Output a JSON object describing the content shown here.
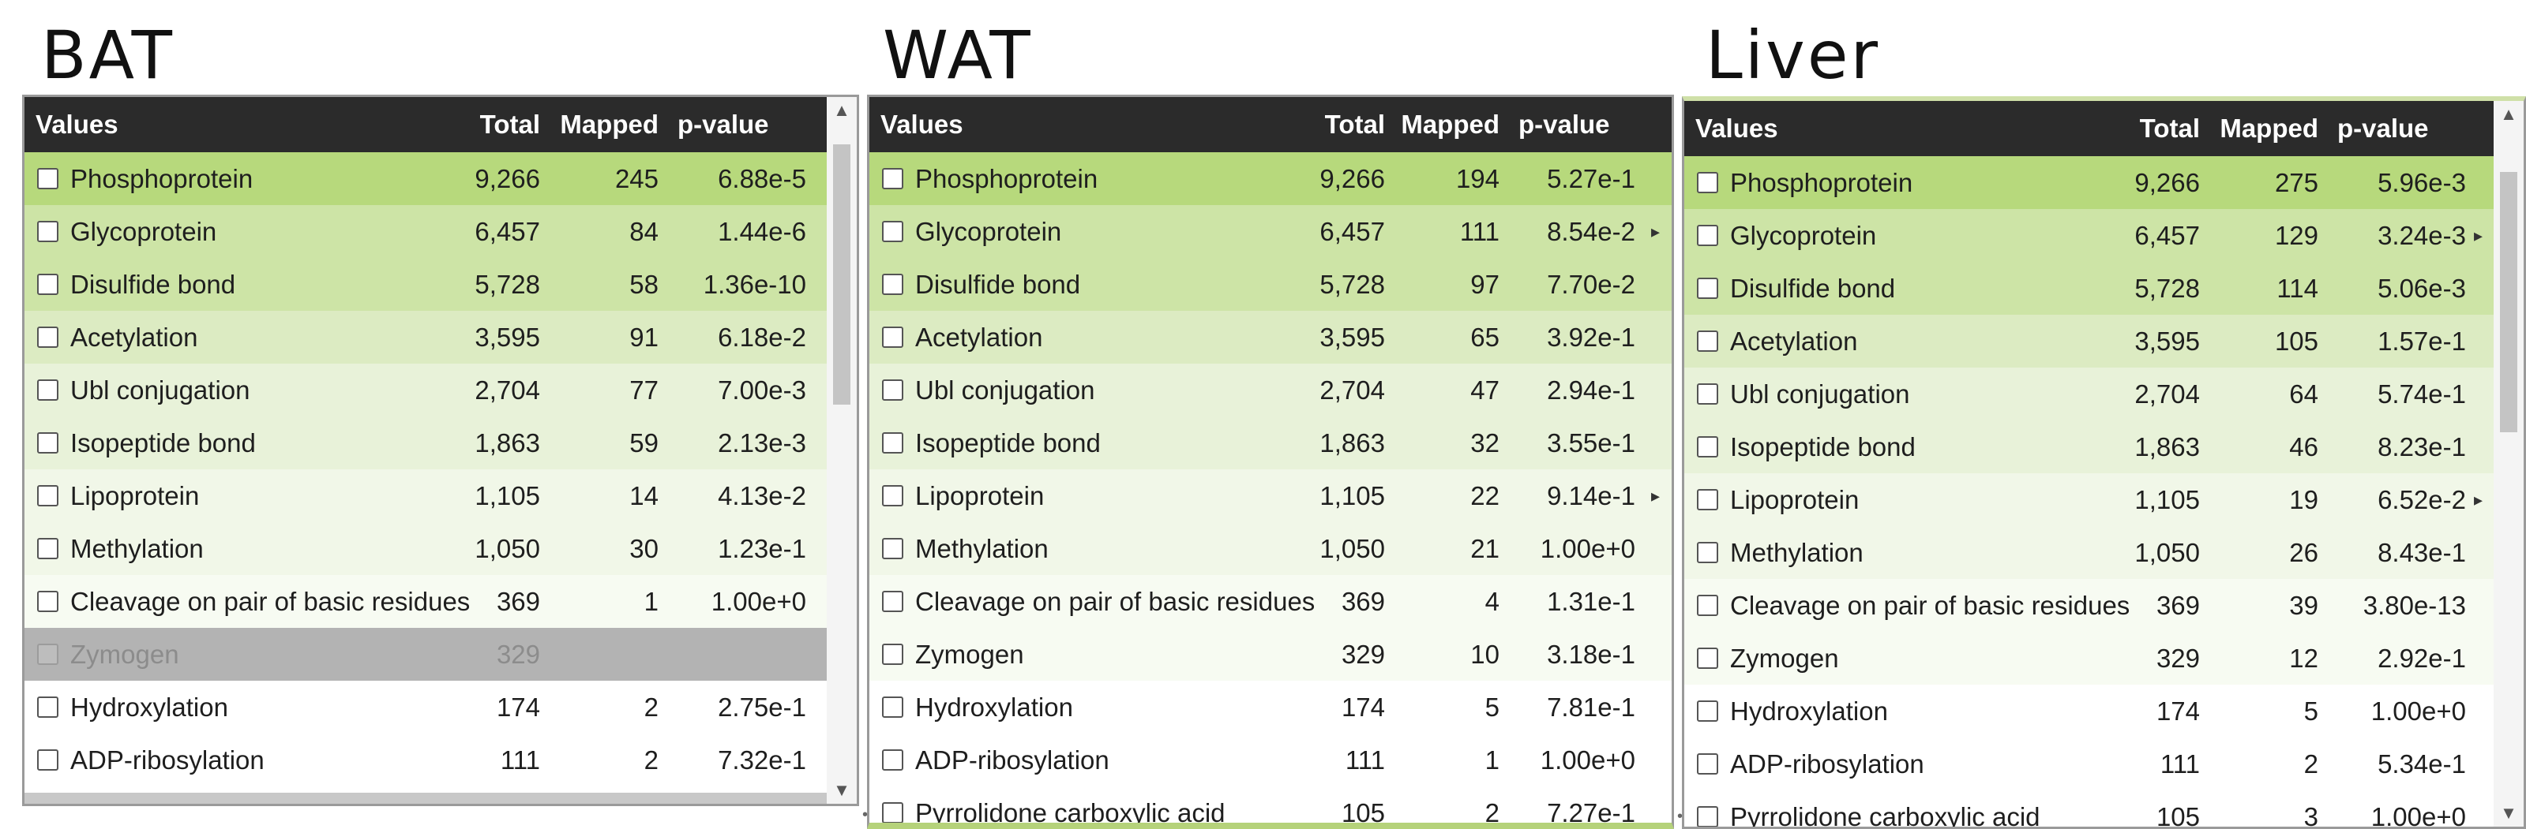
{
  "colors": {
    "header_bg": "#2b2b2b",
    "green_strong": "#b7d97c",
    "green_mid": "#cde4a6",
    "green_light": "#dcebc2",
    "green_pale": "#e8f2d9",
    "green_faint": "#f1f7e8",
    "green_trace": "#f7fbf2",
    "white": "#ffffff",
    "disabled": "#b3b3b3"
  },
  "columns": {
    "values": "Values",
    "total": "Total",
    "mapped": "Mapped",
    "pvalue": "p-value"
  },
  "panels": [
    {
      "title": "BAT",
      "rows": [
        {
          "label": "Phosphoprotein",
          "total": "9,266",
          "mapped": "245",
          "pvalue": "6.88e-5",
          "shade": "green_strong",
          "expand": false
        },
        {
          "label": "Glycoprotein",
          "total": "6,457",
          "mapped": "84",
          "pvalue": "1.44e-6",
          "shade": "green_mid",
          "expand": true
        },
        {
          "label": "Disulfide bond",
          "total": "5,728",
          "mapped": "58",
          "pvalue": "1.36e-10",
          "shade": "green_mid",
          "expand": false
        },
        {
          "label": "Acetylation",
          "total": "3,595",
          "mapped": "91",
          "pvalue": "6.18e-2",
          "shade": "green_light",
          "expand": false
        },
        {
          "label": "Ubl conjugation",
          "total": "2,704",
          "mapped": "77",
          "pvalue": "7.00e-3",
          "shade": "green_pale",
          "expand": false
        },
        {
          "label": "Isopeptide bond",
          "total": "1,863",
          "mapped": "59",
          "pvalue": "2.13e-3",
          "shade": "green_pale",
          "expand": false
        },
        {
          "label": "Lipoprotein",
          "total": "1,105",
          "mapped": "14",
          "pvalue": "4.13e-2",
          "shade": "green_faint",
          "expand": true
        },
        {
          "label": "Methylation",
          "total": "1,050",
          "mapped": "30",
          "pvalue": "1.23e-1",
          "shade": "green_faint",
          "expand": false
        },
        {
          "label": "Cleavage on pair of basic residues",
          "total": "369",
          "mapped": "1",
          "pvalue": "1.00e+0",
          "shade": "green_trace",
          "expand": false
        },
        {
          "label": "Zymogen",
          "total": "329",
          "mapped": "",
          "pvalue": "",
          "shade": "disabled",
          "expand": false,
          "disabled": true
        },
        {
          "label": "Hydroxylation",
          "total": "174",
          "mapped": "2",
          "pvalue": "2.75e-1",
          "shade": "white",
          "expand": false
        },
        {
          "label": "ADP-ribosylation",
          "total": "111",
          "mapped": "2",
          "pvalue": "7.32e-1",
          "shade": "white",
          "expand": false
        }
      ]
    },
    {
      "title": "WAT",
      "rows": [
        {
          "label": "Phosphoprotein",
          "total": "9,266",
          "mapped": "194",
          "pvalue": "5.27e-1",
          "shade": "green_strong",
          "expand": false
        },
        {
          "label": "Glycoprotein",
          "total": "6,457",
          "mapped": "111",
          "pvalue": "8.54e-2",
          "shade": "green_mid",
          "expand": true
        },
        {
          "label": "Disulfide bond",
          "total": "5,728",
          "mapped": "97",
          "pvalue": "7.70e-2",
          "shade": "green_mid",
          "expand": false
        },
        {
          "label": "Acetylation",
          "total": "3,595",
          "mapped": "65",
          "pvalue": "3.92e-1",
          "shade": "green_light",
          "expand": false
        },
        {
          "label": "Ubl conjugation",
          "total": "2,704",
          "mapped": "47",
          "pvalue": "2.94e-1",
          "shade": "green_pale",
          "expand": false
        },
        {
          "label": "Isopeptide bond",
          "total": "1,863",
          "mapped": "32",
          "pvalue": "3.55e-1",
          "shade": "green_pale",
          "expand": false
        },
        {
          "label": "Lipoprotein",
          "total": "1,105",
          "mapped": "22",
          "pvalue": "9.14e-1",
          "shade": "green_faint",
          "expand": true
        },
        {
          "label": "Methylation",
          "total": "1,050",
          "mapped": "21",
          "pvalue": "1.00e+0",
          "shade": "green_faint",
          "expand": false
        },
        {
          "label": "Cleavage on pair of basic residues",
          "total": "369",
          "mapped": "4",
          "pvalue": "1.31e-1",
          "shade": "green_trace",
          "expand": false
        },
        {
          "label": "Zymogen",
          "total": "329",
          "mapped": "10",
          "pvalue": "3.18e-1",
          "shade": "green_trace",
          "expand": false
        },
        {
          "label": "Hydroxylation",
          "total": "174",
          "mapped": "5",
          "pvalue": "7.81e-1",
          "shade": "white",
          "expand": false
        },
        {
          "label": "ADP-ribosylation",
          "total": "111",
          "mapped": "1",
          "pvalue": "1.00e+0",
          "shade": "white",
          "expand": false
        },
        {
          "label": "Pyrrolidone carboxylic acid",
          "total": "105",
          "mapped": "2",
          "pvalue": "7.27e-1",
          "shade": "white",
          "expand": false
        }
      ]
    },
    {
      "title": "Liver",
      "rows": [
        {
          "label": "Phosphoprotein",
          "total": "9,266",
          "mapped": "275",
          "pvalue": "5.96e-3",
          "shade": "green_strong",
          "expand": false
        },
        {
          "label": "Glycoprotein",
          "total": "6,457",
          "mapped": "129",
          "pvalue": "3.24e-3",
          "shade": "green_mid",
          "expand": true
        },
        {
          "label": "Disulfide bond",
          "total": "5,728",
          "mapped": "114",
          "pvalue": "5.06e-3",
          "shade": "green_mid",
          "expand": false
        },
        {
          "label": "Acetylation",
          "total": "3,595",
          "mapped": "105",
          "pvalue": "1.57e-1",
          "shade": "green_light",
          "expand": false
        },
        {
          "label": "Ubl conjugation",
          "total": "2,704",
          "mapped": "64",
          "pvalue": "5.74e-1",
          "shade": "green_pale",
          "expand": false
        },
        {
          "label": "Isopeptide bond",
          "total": "1,863",
          "mapped": "46",
          "pvalue": "8.23e-1",
          "shade": "green_pale",
          "expand": false
        },
        {
          "label": "Lipoprotein",
          "total": "1,105",
          "mapped": "19",
          "pvalue": "6.52e-2",
          "shade": "green_faint",
          "expand": true
        },
        {
          "label": "Methylation",
          "total": "1,050",
          "mapped": "26",
          "pvalue": "8.43e-1",
          "shade": "green_faint",
          "expand": false
        },
        {
          "label": "Cleavage on pair of basic residues",
          "total": "369",
          "mapped": "39",
          "pvalue": "3.80e-13",
          "shade": "green_trace",
          "expand": false
        },
        {
          "label": "Zymogen",
          "total": "329",
          "mapped": "12",
          "pvalue": "2.92e-1",
          "shade": "green_trace",
          "expand": false
        },
        {
          "label": "Hydroxylation",
          "total": "174",
          "mapped": "5",
          "pvalue": "1.00e+0",
          "shade": "white",
          "expand": false
        },
        {
          "label": "ADP-ribosylation",
          "total": "111",
          "mapped": "2",
          "pvalue": "5.34e-1",
          "shade": "white",
          "expand": false
        },
        {
          "label": "Pyrrolidone carboxylic acid",
          "total": "105",
          "mapped": "3",
          "pvalue": "1.00e+0",
          "shade": "white",
          "expand": false
        }
      ]
    }
  ]
}
